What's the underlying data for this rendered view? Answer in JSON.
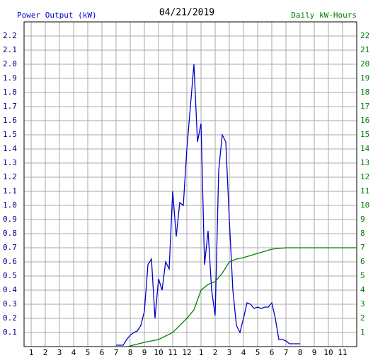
{
  "chart_data": {
    "type": "line",
    "title": "04/21/2019",
    "xlim": [
      0.5,
      24
    ],
    "xticks": [
      {
        "value": 1,
        "label": "1"
      },
      {
        "value": 2,
        "label": "2"
      },
      {
        "value": 3,
        "label": "3"
      },
      {
        "value": 4,
        "label": "4"
      },
      {
        "value": 5,
        "label": "5"
      },
      {
        "value": 6,
        "label": "6"
      },
      {
        "value": 7,
        "label": "7"
      },
      {
        "value": 8,
        "label": "8"
      },
      {
        "value": 9,
        "label": "9"
      },
      {
        "value": 10,
        "label": "10"
      },
      {
        "value": 11,
        "label": "11"
      },
      {
        "value": 12,
        "label": "12"
      },
      {
        "value": 13,
        "label": "1"
      },
      {
        "value": 14,
        "label": "2"
      },
      {
        "value": 15,
        "label": "3"
      },
      {
        "value": 16,
        "label": "4"
      },
      {
        "value": 17,
        "label": "5"
      },
      {
        "value": 18,
        "label": "6"
      },
      {
        "value": 19,
        "label": "7"
      },
      {
        "value": 20,
        "label": "8"
      },
      {
        "value": 21,
        "label": "9"
      },
      {
        "value": 22,
        "label": "10"
      },
      {
        "value": 23,
        "label": "11"
      }
    ],
    "ylim": [
      0,
      2.3
    ],
    "yticks": [
      {
        "value": 0.1,
        "label": "0.1"
      },
      {
        "value": 0.2,
        "label": "0.2"
      },
      {
        "value": 0.3,
        "label": "0.3"
      },
      {
        "value": 0.4,
        "label": "0.4"
      },
      {
        "value": 0.5,
        "label": "0.5"
      },
      {
        "value": 0.6,
        "label": "0.6"
      },
      {
        "value": 0.7,
        "label": "0.7"
      },
      {
        "value": 0.8,
        "label": "0.8"
      },
      {
        "value": 0.9,
        "label": "0.9"
      },
      {
        "value": 1,
        "label": "1.0"
      },
      {
        "value": 1.1,
        "label": "1.1"
      },
      {
        "value": 1.2,
        "label": "1.2"
      },
      {
        "value": 1.3,
        "label": "1.3"
      },
      {
        "value": 1.4,
        "label": "1.4"
      },
      {
        "value": 1.5,
        "label": "1.5"
      },
      {
        "value": 1.6,
        "label": "1.6"
      },
      {
        "value": 1.7,
        "label": "1.7"
      },
      {
        "value": 1.8,
        "label": "1.8"
      },
      {
        "value": 1.9,
        "label": "1.9"
      },
      {
        "value": 2,
        "label": "2.0"
      },
      {
        "value": 2.1,
        "label": "2.1"
      },
      {
        "value": 2.2,
        "label": "2.2"
      }
    ],
    "y2lim": [
      0,
      23
    ],
    "y2ticks": [
      1,
      2,
      3,
      4,
      5,
      6,
      7,
      8,
      9,
      10,
      11,
      12,
      13,
      14,
      15,
      16,
      17,
      18,
      19,
      20,
      21,
      22
    ],
    "grid": true,
    "series": [
      {
        "name": "Power Output (kW)",
        "color": "#0000cc",
        "x": [
          7.0,
          7.5,
          7.75,
          8.0,
          8.25,
          8.5,
          8.75,
          9.0,
          9.25,
          9.5,
          9.75,
          10.0,
          10.25,
          10.5,
          10.75,
          11.0,
          11.25,
          11.5,
          11.75,
          12.0,
          12.25,
          12.5,
          12.75,
          13.0,
          13.25,
          13.5,
          13.75,
          14.0,
          14.25,
          14.5,
          14.75,
          15.0,
          15.25,
          15.5,
          15.75,
          16.0,
          16.25,
          16.5,
          16.75,
          17.0,
          17.25,
          17.5,
          17.75,
          18.0,
          18.25,
          18.5,
          18.75,
          19.0,
          19.25,
          19.5,
          19.75,
          20.0
        ],
        "values": [
          0.01,
          0.01,
          0.05,
          0.08,
          0.1,
          0.11,
          0.15,
          0.25,
          0.58,
          0.62,
          0.2,
          0.48,
          0.4,
          0.6,
          0.55,
          1.1,
          0.78,
          1.02,
          1.0,
          1.4,
          1.7,
          2.0,
          1.45,
          1.58,
          0.58,
          0.82,
          0.4,
          0.22,
          1.25,
          1.5,
          1.45,
          0.9,
          0.4,
          0.15,
          0.1,
          0.2,
          0.31,
          0.3,
          0.27,
          0.28,
          0.27,
          0.28,
          0.28,
          0.31,
          0.2,
          0.05,
          0.05,
          0.04,
          0.02,
          0.02,
          0.02,
          0.02
        ]
      },
      {
        "name": "Daily kW-Hours",
        "color": "#008000",
        "axis": "y2",
        "x": [
          7.8,
          9.0,
          10.0,
          11.0,
          12.0,
          12.5,
          13.0,
          13.5,
          14.0,
          14.5,
          15.0,
          15.5,
          16.0,
          17.0,
          18.0,
          19.0,
          24.0
        ],
        "values": [
          0,
          0.3,
          0.5,
          1.0,
          2.0,
          2.6,
          4.0,
          4.4,
          4.6,
          5.2,
          6.0,
          6.2,
          6.3,
          6.6,
          6.9,
          7.0,
          7.0
        ]
      }
    ]
  }
}
